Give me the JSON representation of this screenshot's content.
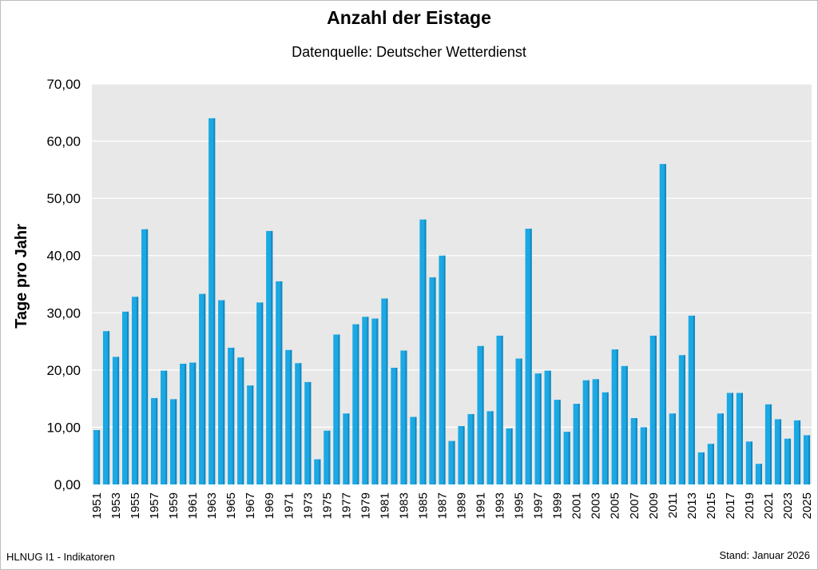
{
  "chart_data": {
    "type": "bar",
    "title": "Anzahl der Eistage",
    "subtitle": "Datenquelle: Deutscher Wetterdienst",
    "xlabel": "",
    "ylabel": "Tage pro Jahr",
    "ylim": [
      0,
      70
    ],
    "ytick_values": [
      0,
      10,
      20,
      30,
      40,
      50,
      60,
      70
    ],
    "ytick_labels": [
      "0,00",
      "10,00",
      "20,00",
      "30,00",
      "40,00",
      "50,00",
      "60,00",
      "70,00"
    ],
    "grid": true,
    "bar_color": "#1ba8e4",
    "plot_background": "#e8e8e8",
    "categories": [
      "1951",
      "1952",
      "1953",
      "1954",
      "1955",
      "1956",
      "1957",
      "1958",
      "1959",
      "1960",
      "1961",
      "1962",
      "1963",
      "1964",
      "1965",
      "1966",
      "1967",
      "1968",
      "1969",
      "1970",
      "1971",
      "1972",
      "1973",
      "1974",
      "1975",
      "1976",
      "1977",
      "1978",
      "1979",
      "1980",
      "1981",
      "1982",
      "1983",
      "1984",
      "1985",
      "1986",
      "1987",
      "1988",
      "1989",
      "1990",
      "1991",
      "1992",
      "1993",
      "1994",
      "1995",
      "1996",
      "1997",
      "1998",
      "1999",
      "2000",
      "2001",
      "2002",
      "2003",
      "2004",
      "2005",
      "2006",
      "2007",
      "2008",
      "2009",
      "2010",
      "2011",
      "2012",
      "2013",
      "2014",
      "2015",
      "2016",
      "2017",
      "2018",
      "2019",
      "2020",
      "2021",
      "2022",
      "2023",
      "2024",
      "2025"
    ],
    "values": [
      9.5,
      26.8,
      22.3,
      30.2,
      32.8,
      44.6,
      15.1,
      19.9,
      14.9,
      21.1,
      21.3,
      33.3,
      64.0,
      32.2,
      23.9,
      22.2,
      17.3,
      31.8,
      44.3,
      35.5,
      23.5,
      21.2,
      17.9,
      4.4,
      9.4,
      26.2,
      12.4,
      28.0,
      29.3,
      29.0,
      32.5,
      20.4,
      23.4,
      11.8,
      46.3,
      36.2,
      40.0,
      7.6,
      10.2,
      12.3,
      24.2,
      12.8,
      26.0,
      9.8,
      22.0,
      44.7,
      19.4,
      19.9,
      14.8,
      9.2,
      14.1,
      18.2,
      18.4,
      16.1,
      23.6,
      20.7,
      11.6,
      10.0,
      26.0,
      56.0,
      12.4,
      22.6,
      29.5,
      5.6,
      7.1,
      12.4,
      16.0,
      16.0,
      7.5,
      3.6,
      14.0,
      11.4,
      8.0,
      11.2,
      8.6
    ]
  },
  "footer": {
    "source": "HLNUG I1 - Indikatoren",
    "date": "Stand: Januar 2026"
  }
}
